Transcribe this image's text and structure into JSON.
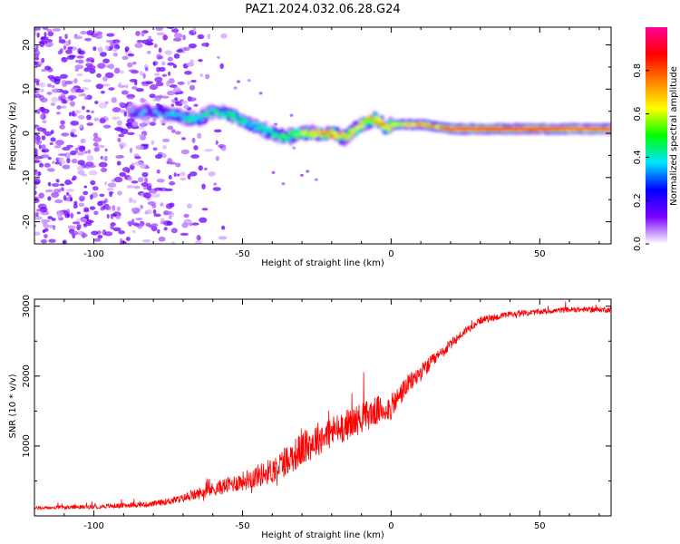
{
  "title": "PAZ1.2024.032.06.28.G24",
  "chart_data": [
    {
      "type": "heatmap",
      "title": "PAZ1.2024.032.06.28.G24",
      "xlabel": "Height of straight line (km)",
      "ylabel": "Frequency (Hz)",
      "xlim": [
        -120,
        74
      ],
      "ylim": [
        -25,
        24
      ],
      "x_ticks": [
        -100,
        -50,
        0,
        50
      ],
      "y_ticks": [
        -20,
        -10,
        0,
        10,
        20
      ],
      "colorbar": {
        "label": "Normalized spectral amplitude",
        "range": [
          0,
          1
        ],
        "ticks": [
          0.0,
          0.2,
          0.4,
          0.6,
          0.8
        ],
        "colormap": [
          "#ffffff",
          "#7a00ff",
          "#0000ff",
          "#00e5ff",
          "#00ff00",
          "#ffff00",
          "#ff8000",
          "#ff0000",
          "#ff0099"
        ]
      },
      "ridge": {
        "x": [
          -88,
          -80,
          -72,
          -66,
          -60,
          -54,
          -48,
          -44,
          -40,
          -36,
          -32,
          -28,
          -24,
          -20,
          -16,
          -12,
          -8,
          -5,
          -2,
          0,
          5,
          10,
          20,
          30,
          40,
          50,
          60,
          74
        ],
        "frequency": [
          5,
          5,
          4,
          3,
          5,
          4,
          2,
          1,
          0,
          -1,
          0,
          0,
          0,
          0,
          -1,
          1,
          3,
          3,
          1,
          2,
          2,
          2,
          1,
          1,
          1,
          1,
          1,
          1
        ],
        "amplitude": [
          0.3,
          0.35,
          0.4,
          0.45,
          0.4,
          0.45,
          0.4,
          0.45,
          0.45,
          0.5,
          0.55,
          0.65,
          0.8,
          0.75,
          0.7,
          0.6,
          0.7,
          0.75,
          0.7,
          0.6,
          0.7,
          0.75,
          0.9,
          0.95,
          0.95,
          0.95,
          0.9,
          0.9
        ]
      },
      "noise_region_x": [
        -120,
        -60
      ]
    },
    {
      "type": "line",
      "xlabel": "Height of straight line (km)",
      "ylabel": "SNR (10 * v/v)",
      "xlim": [
        -120,
        74
      ],
      "ylim": [
        0,
        3100
      ],
      "x_ticks": [
        -100,
        -50,
        0,
        50
      ],
      "y_ticks": [
        1000,
        2000,
        3000
      ],
      "color": "#ff0000",
      "series": [
        {
          "x": [
            -120,
            -100,
            -80,
            -70,
            -60,
            -50,
            -40,
            -35,
            -30,
            -25,
            -20,
            -15,
            -10,
            -5,
            0,
            5,
            10,
            15,
            20,
            25,
            30,
            40,
            50,
            60,
            74
          ],
          "values": [
            110,
            130,
            170,
            250,
            380,
            500,
            650,
            800,
            950,
            1100,
            1200,
            1300,
            1400,
            1500,
            1550,
            1850,
            2050,
            2250,
            2450,
            2650,
            2800,
            2880,
            2920,
            2950,
            2950
          ],
          "spread": [
            50,
            60,
            80,
            120,
            200,
            280,
            380,
            450,
            500,
            500,
            480,
            450,
            450,
            420,
            380,
            300,
            250,
            200,
            150,
            120,
            100,
            90,
            80,
            80,
            80
          ]
        }
      ]
    }
  ]
}
